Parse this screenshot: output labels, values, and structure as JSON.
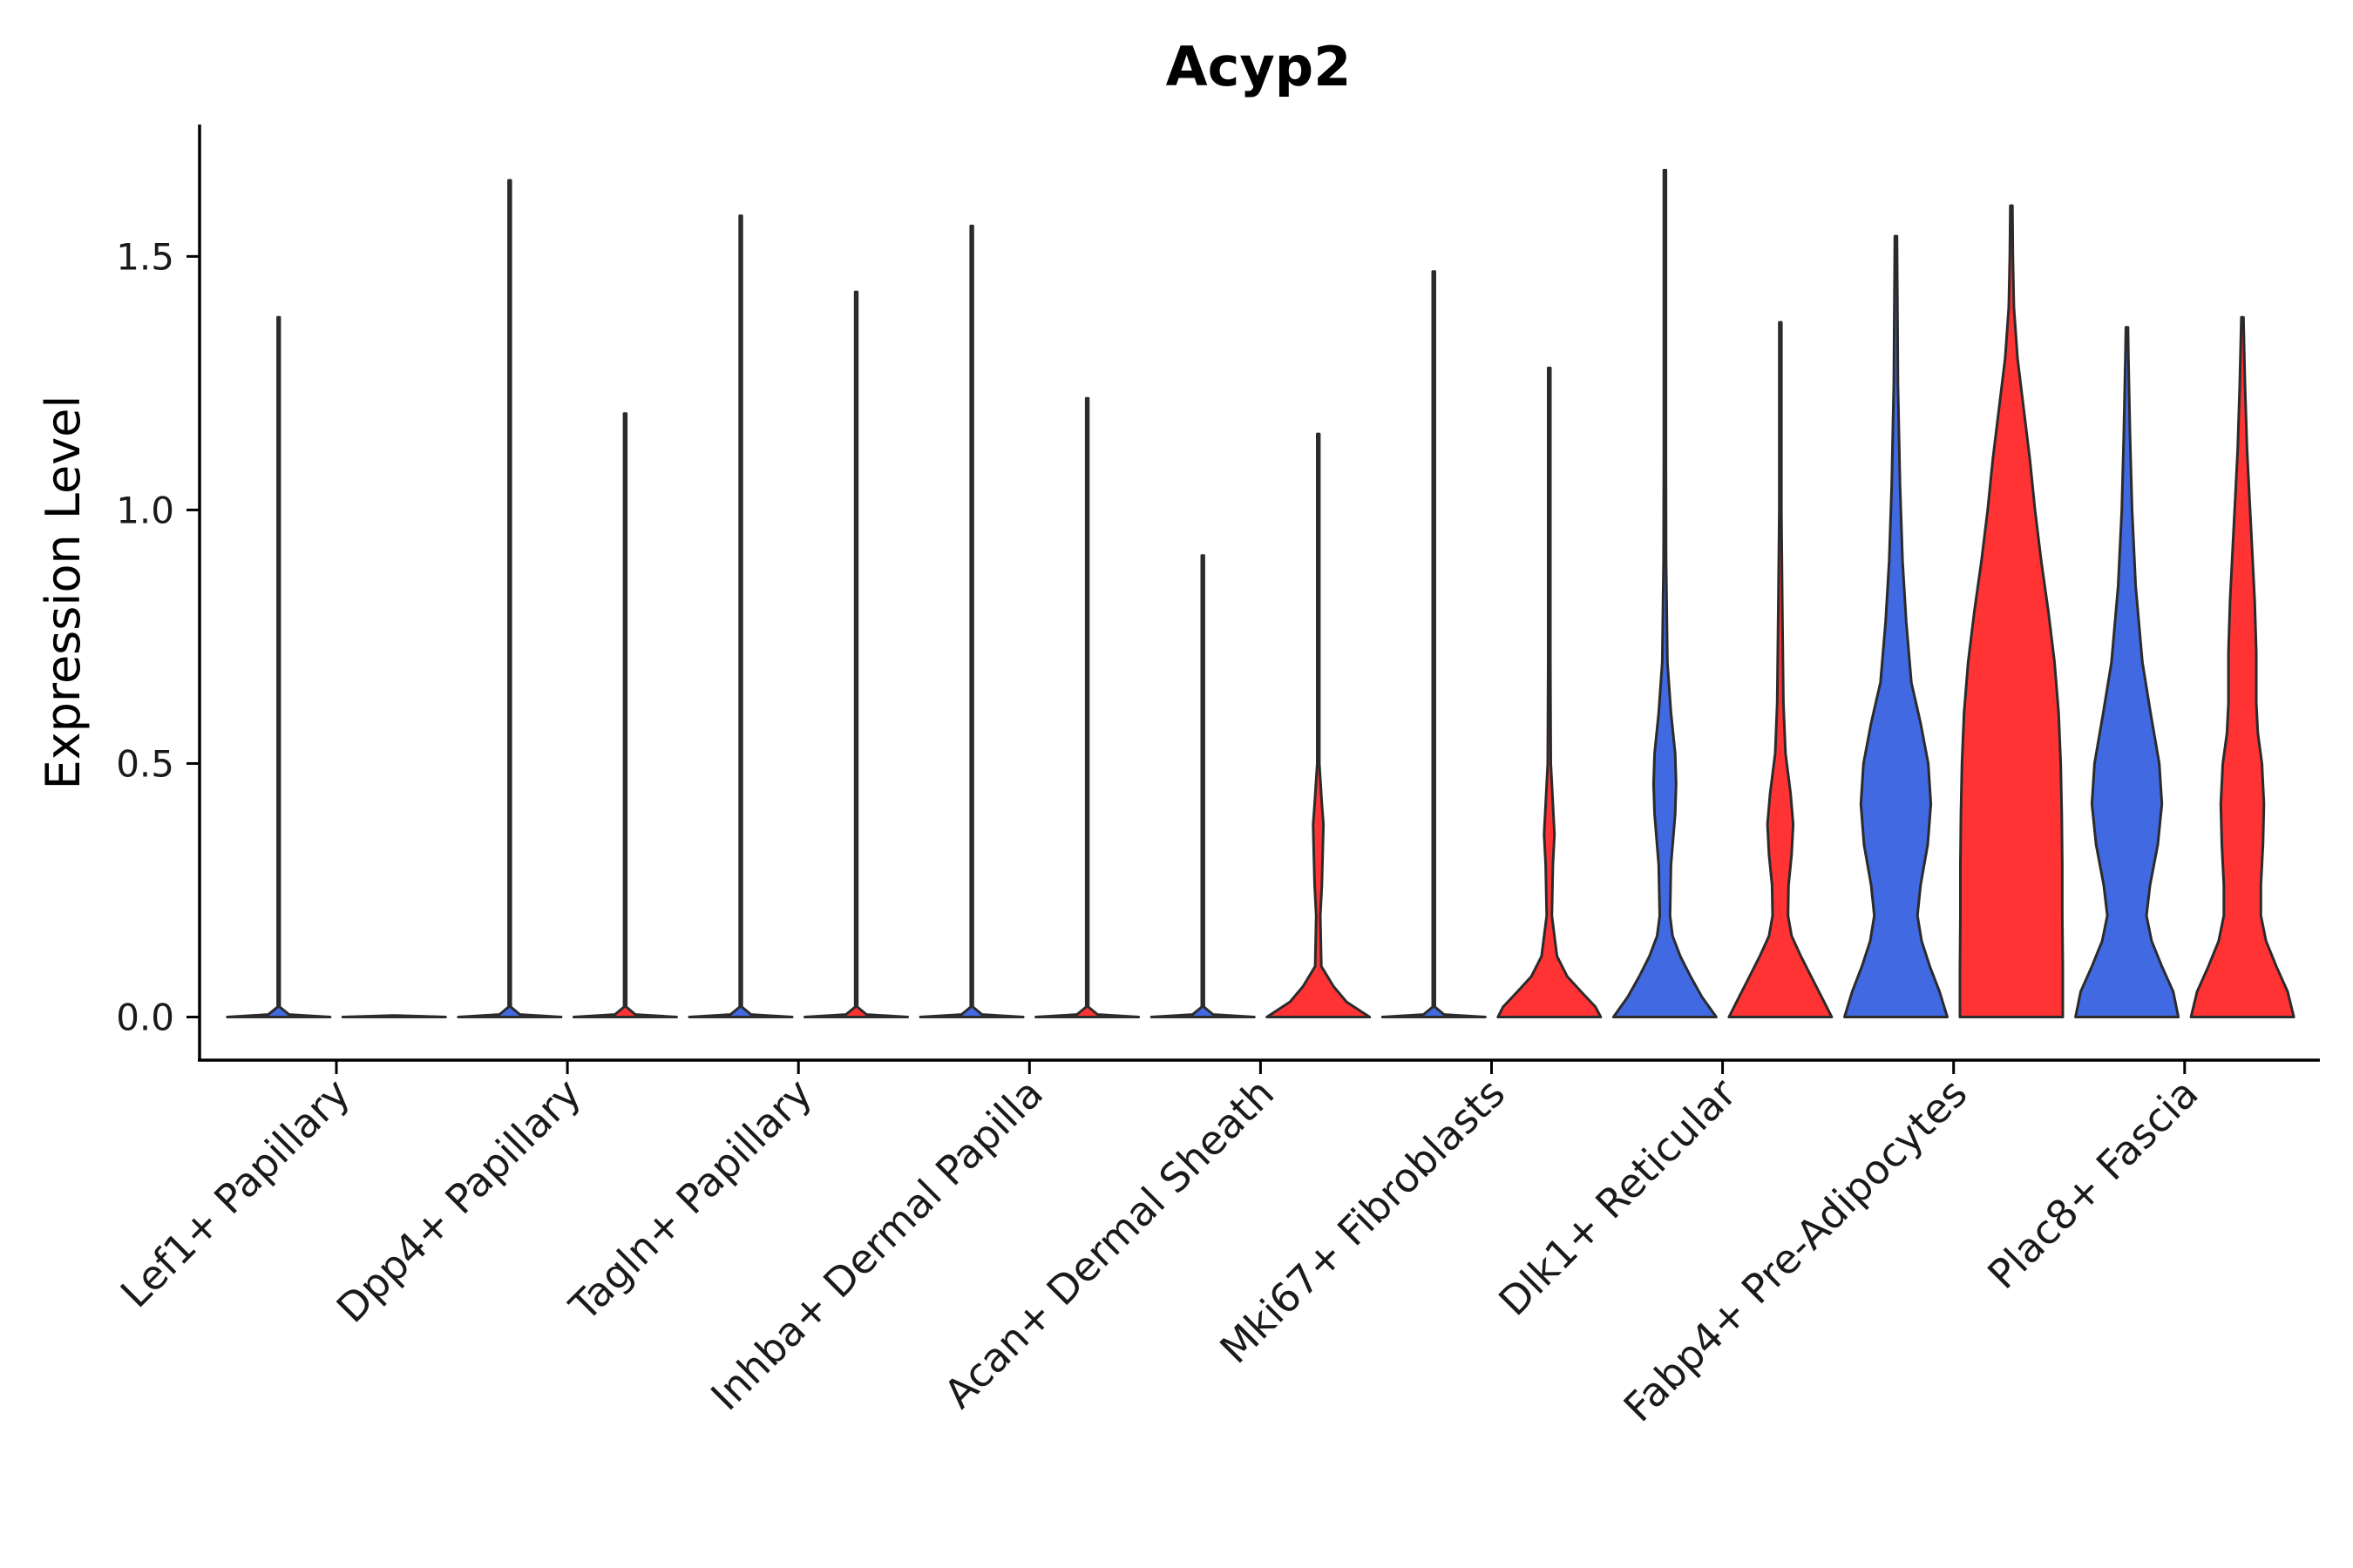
{
  "chart_data": {
    "type": "violin",
    "title": "Acyp2",
    "xlabel": "",
    "ylabel": "Expression Level",
    "ylim": [
      -0.085,
      1.76
    ],
    "yticks": [
      0.0,
      0.5,
      1.0,
      1.5
    ],
    "ytick_labels": [
      "0.0",
      "0.5",
      "1.0",
      "1.5"
    ],
    "grid": false,
    "legend": "none",
    "colors": {
      "group1": "#4169E1",
      "group2": "#FF3333",
      "outline": "#2b2b2b"
    },
    "categories": [
      "Lef1+ Papillary",
      "Dpp4+ Papillary",
      "Tagln+ Papillary",
      "Inhba+ Dermal Papilla",
      "Acan+ Dermal Sheath",
      "Mki67+ Fibroblasts",
      "Dlk1+ Reticular",
      "Fabp4+ Pre-Adipocytes",
      "Plac8+ Fascia"
    ],
    "violins": [
      {
        "category": "Lef1+ Papillary",
        "group": "group1",
        "max": 1.38,
        "profile": [
          [
            0,
            1.0
          ],
          [
            0.005,
            0.2
          ],
          [
            0.02,
            0.02
          ],
          [
            1.38,
            0.01
          ]
        ]
      },
      {
        "category": "Lef1+ Papillary",
        "group": "group2",
        "max": 0.0,
        "profile": [
          [
            0,
            1.0
          ],
          [
            0.003,
            0.02
          ]
        ]
      },
      {
        "category": "Dpp4+ Papillary",
        "group": "group1",
        "max": 1.65,
        "profile": [
          [
            0,
            1.0
          ],
          [
            0.005,
            0.2
          ],
          [
            0.02,
            0.02
          ],
          [
            1.65,
            0.01
          ]
        ]
      },
      {
        "category": "Dpp4+ Papillary",
        "group": "group2",
        "max": 1.19,
        "profile": [
          [
            0,
            1.0
          ],
          [
            0.005,
            0.2
          ],
          [
            0.02,
            0.02
          ],
          [
            1.19,
            0.01
          ]
        ]
      },
      {
        "category": "Tagln+ Papillary",
        "group": "group1",
        "max": 1.58,
        "profile": [
          [
            0,
            1.0
          ],
          [
            0.005,
            0.2
          ],
          [
            0.02,
            0.02
          ],
          [
            1.58,
            0.01
          ]
        ]
      },
      {
        "category": "Tagln+ Papillary",
        "group": "group2",
        "max": 1.43,
        "profile": [
          [
            0,
            1.0
          ],
          [
            0.005,
            0.2
          ],
          [
            0.02,
            0.02
          ],
          [
            1.43,
            0.01
          ]
        ]
      },
      {
        "category": "Inhba+ Dermal Papilla",
        "group": "group1",
        "max": 1.56,
        "profile": [
          [
            0,
            1.0
          ],
          [
            0.005,
            0.2
          ],
          [
            0.02,
            0.02
          ],
          [
            1.56,
            0.01
          ]
        ]
      },
      {
        "category": "Inhba+ Dermal Papilla",
        "group": "group2",
        "max": 1.22,
        "profile": [
          [
            0,
            1.0
          ],
          [
            0.005,
            0.2
          ],
          [
            0.02,
            0.02
          ],
          [
            1.22,
            0.01
          ]
        ]
      },
      {
        "category": "Acan+ Dermal Sheath",
        "group": "group1",
        "max": 0.91,
        "profile": [
          [
            0,
            1.0
          ],
          [
            0.005,
            0.2
          ],
          [
            0.02,
            0.02
          ],
          [
            0.91,
            0.01
          ]
        ]
      },
      {
        "category": "Acan+ Dermal Sheath",
        "group": "group2",
        "max": 1.15,
        "profile": [
          [
            0,
            1.0
          ],
          [
            0.01,
            0.85
          ],
          [
            0.03,
            0.55
          ],
          [
            0.06,
            0.3
          ],
          [
            0.1,
            0.06
          ],
          [
            0.2,
            0.04
          ],
          [
            0.26,
            0.07
          ],
          [
            0.34,
            0.09
          ],
          [
            0.38,
            0.1
          ],
          [
            0.42,
            0.07
          ],
          [
            0.5,
            0.02
          ],
          [
            0.65,
            0.01
          ],
          [
            1.15,
            0.005
          ]
        ]
      },
      {
        "category": "Mki67+ Fibroblasts",
        "group": "group1",
        "max": 1.47,
        "profile": [
          [
            0,
            1.0
          ],
          [
            0.005,
            0.2
          ],
          [
            0.02,
            0.02
          ],
          [
            1.47,
            0.01
          ]
        ]
      },
      {
        "category": "Mki67+ Fibroblasts",
        "group": "group2",
        "max": 1.28,
        "profile": [
          [
            0,
            1.0
          ],
          [
            0.02,
            0.9
          ],
          [
            0.05,
            0.62
          ],
          [
            0.08,
            0.35
          ],
          [
            0.12,
            0.15
          ],
          [
            0.2,
            0.05
          ],
          [
            0.3,
            0.07
          ],
          [
            0.36,
            0.1
          ],
          [
            0.42,
            0.07
          ],
          [
            0.5,
            0.03
          ],
          [
            0.7,
            0.015
          ],
          [
            1.28,
            0.005
          ]
        ]
      },
      {
        "category": "Dlk1+ Reticular",
        "group": "group1",
        "max": 1.67,
        "profile": [
          [
            0,
            1.0
          ],
          [
            0.04,
            0.72
          ],
          [
            0.08,
            0.5
          ],
          [
            0.12,
            0.3
          ],
          [
            0.16,
            0.15
          ],
          [
            0.2,
            0.1
          ],
          [
            0.3,
            0.12
          ],
          [
            0.4,
            0.2
          ],
          [
            0.46,
            0.22
          ],
          [
            0.52,
            0.2
          ],
          [
            0.6,
            0.12
          ],
          [
            0.7,
            0.05
          ],
          [
            0.9,
            0.025
          ],
          [
            1.1,
            0.015
          ],
          [
            1.67,
            0.005
          ]
        ]
      },
      {
        "category": "Dlk1+ Reticular",
        "group": "group2",
        "max": 1.37,
        "profile": [
          [
            0,
            1.0
          ],
          [
            0.04,
            0.8
          ],
          [
            0.08,
            0.6
          ],
          [
            0.12,
            0.4
          ],
          [
            0.16,
            0.22
          ],
          [
            0.2,
            0.15
          ],
          [
            0.26,
            0.16
          ],
          [
            0.32,
            0.22
          ],
          [
            0.38,
            0.25
          ],
          [
            0.44,
            0.2
          ],
          [
            0.52,
            0.1
          ],
          [
            0.62,
            0.06
          ],
          [
            0.8,
            0.04
          ],
          [
            1.0,
            0.02
          ],
          [
            1.37,
            0.005
          ]
        ]
      },
      {
        "category": "Fabp4+ Pre-Adipocytes",
        "group": "group1",
        "max": 1.54,
        "profile": [
          [
            0,
            1.0
          ],
          [
            0.05,
            0.85
          ],
          [
            0.1,
            0.66
          ],
          [
            0.15,
            0.5
          ],
          [
            0.2,
            0.42
          ],
          [
            0.26,
            0.48
          ],
          [
            0.34,
            0.62
          ],
          [
            0.42,
            0.68
          ],
          [
            0.5,
            0.63
          ],
          [
            0.58,
            0.48
          ],
          [
            0.66,
            0.3
          ],
          [
            0.78,
            0.2
          ],
          [
            0.9,
            0.13
          ],
          [
            1.05,
            0.08
          ],
          [
            1.25,
            0.04
          ],
          [
            1.54,
            0.01
          ]
        ]
      },
      {
        "category": "Fabp4+ Pre-Adipocytes",
        "group": "group2",
        "max": 1.6,
        "profile": [
          [
            0,
            1.0
          ],
          [
            0.1,
            1.0
          ],
          [
            0.2,
            0.99
          ],
          [
            0.3,
            0.99
          ],
          [
            0.4,
            0.98
          ],
          [
            0.5,
            0.96
          ],
          [
            0.6,
            0.92
          ],
          [
            0.7,
            0.84
          ],
          [
            0.8,
            0.72
          ],
          [
            0.9,
            0.58
          ],
          [
            1.0,
            0.46
          ],
          [
            1.1,
            0.36
          ],
          [
            1.2,
            0.24
          ],
          [
            1.3,
            0.12
          ],
          [
            1.4,
            0.05
          ],
          [
            1.5,
            0.03
          ],
          [
            1.6,
            0.02
          ]
        ]
      },
      {
        "category": "Plac8+ Fascia",
        "group": "group1",
        "max": 1.36,
        "profile": [
          [
            0,
            1.0
          ],
          [
            0.05,
            0.9
          ],
          [
            0.1,
            0.68
          ],
          [
            0.15,
            0.48
          ],
          [
            0.2,
            0.38
          ],
          [
            0.26,
            0.45
          ],
          [
            0.34,
            0.6
          ],
          [
            0.42,
            0.68
          ],
          [
            0.5,
            0.63
          ],
          [
            0.6,
            0.46
          ],
          [
            0.7,
            0.3
          ],
          [
            0.85,
            0.17
          ],
          [
            1.0,
            0.1
          ],
          [
            1.15,
            0.06
          ],
          [
            1.3,
            0.03
          ],
          [
            1.36,
            0.02
          ]
        ]
      },
      {
        "category": "Plac8+ Fascia",
        "group": "group2",
        "max": 1.38,
        "profile": [
          [
            0,
            1.0
          ],
          [
            0.05,
            0.88
          ],
          [
            0.1,
            0.66
          ],
          [
            0.15,
            0.46
          ],
          [
            0.2,
            0.36
          ],
          [
            0.26,
            0.36
          ],
          [
            0.34,
            0.4
          ],
          [
            0.42,
            0.42
          ],
          [
            0.5,
            0.38
          ],
          [
            0.56,
            0.3
          ],
          [
            0.62,
            0.27
          ],
          [
            0.72,
            0.27
          ],
          [
            0.82,
            0.24
          ],
          [
            0.92,
            0.19
          ],
          [
            1.02,
            0.14
          ],
          [
            1.12,
            0.09
          ],
          [
            1.25,
            0.05
          ],
          [
            1.38,
            0.01
          ]
        ]
      }
    ]
  }
}
